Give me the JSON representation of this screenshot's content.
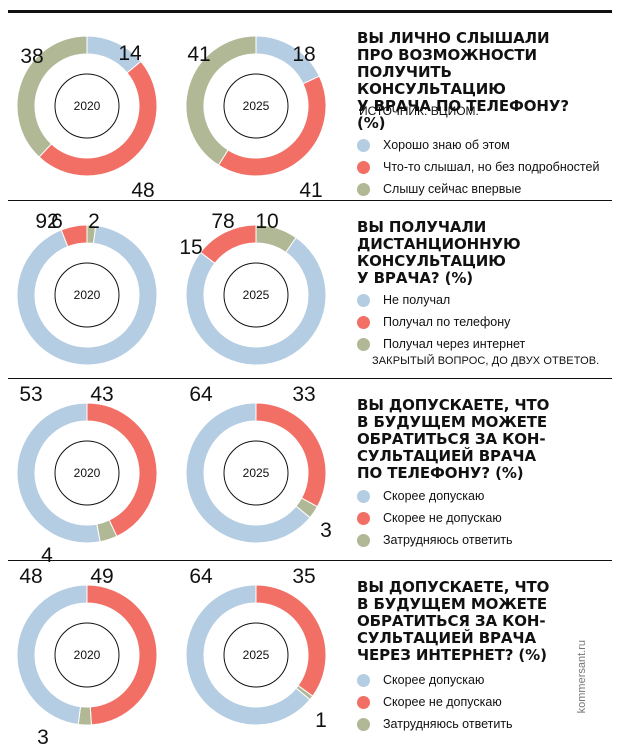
{
  "colors": {
    "blue": "#b5cde2",
    "red": "#f26f66",
    "olive": "#b1b896"
  },
  "watermark": "kommersant.ru",
  "chart_data": [
    {
      "type": "pie",
      "title": "ВЫ ЛИЧНО СЛЫШАЛИ ПРО ВОЗМОЖНОСТИ ПОЛУЧИТЬ КОНСУЛЬТАЦИЮ У ВРАЧА ПО ТЕЛЕФОНУ? (%)",
      "source": "ИСТОЧНИК: ВЦИОМ.",
      "note": "",
      "categories": [
        "Хорошо знаю об этом",
        "Что-то слышал, но без подробностей",
        "Слышу сейчас впервые"
      ],
      "series": [
        {
          "name": "2020",
          "values": [
            14,
            48,
            38
          ]
        },
        {
          "name": "2025",
          "values": [
            18,
            41,
            41
          ]
        }
      ]
    },
    {
      "type": "pie",
      "title": "ВЫ ПОЛУЧАЛИ ДИСТАНЦИОННУЮ КОНСУЛЬТАЦИЮ У ВРАЧА? (%)",
      "source": "",
      "note": "ЗАКРЫТЫЙ ВОПРОС, ДО ДВУХ ОТВЕТОВ.",
      "categories": [
        "Не получал",
        "Получал по телефону",
        "Получал через интернет"
      ],
      "series": [
        {
          "name": "2020",
          "values": [
            92,
            6,
            2
          ]
        },
        {
          "name": "2025",
          "values": [
            78,
            15,
            10
          ]
        }
      ]
    },
    {
      "type": "pie",
      "title": "ВЫ ДОПУСКАЕТЕ, ЧТО В БУДУЩЕМ МОЖЕТЕ ОБРАТИТЬСЯ ЗА КОН-СУЛЬТАЦИЕЙ ВРАЧА ПО ТЕЛЕФОНУ? (%)",
      "source": "",
      "note": "",
      "categories": [
        "Скорее допускаю",
        "Скорее не допускаю",
        "Затрудняюсь ответить"
      ],
      "series": [
        {
          "name": "2020",
          "values": [
            53,
            43,
            4
          ]
        },
        {
          "name": "2025",
          "values": [
            64,
            33,
            3
          ]
        }
      ]
    },
    {
      "type": "pie",
      "title": "ВЫ ДОПУСКАЕТЕ, ЧТО В БУДУЩЕМ МОЖЕТЕ ОБРАТИТЬСЯ ЗА КОН-СУЛЬТАЦИЕЙ ВРАЧА ЧЕРЕЗ ИНТЕРНЕТ? (%)",
      "source": "",
      "note": "",
      "categories": [
        "Скорее допускаю",
        "Скорее не допускаю",
        "Затрудняюсь ответить"
      ],
      "series": [
        {
          "name": "2020",
          "values": [
            48,
            49,
            3
          ]
        },
        {
          "name": "2025",
          "values": [
            64,
            35,
            1
          ]
        }
      ]
    }
  ]
}
